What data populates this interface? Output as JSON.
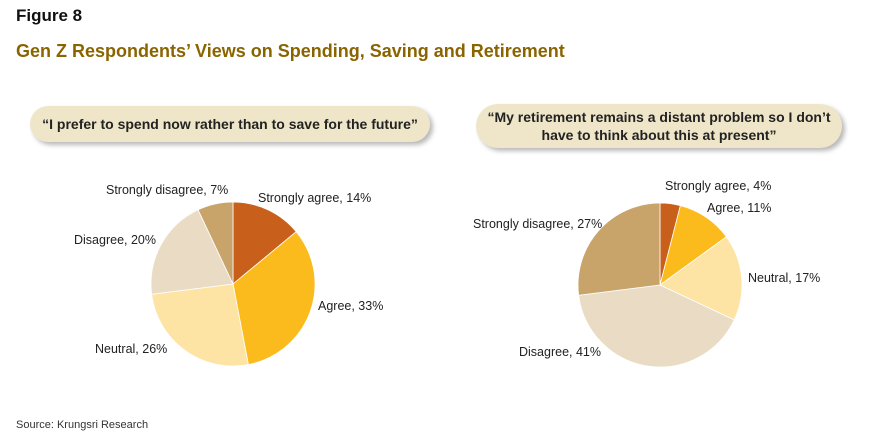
{
  "figure_label": "Figure 8",
  "title": "Gen Z Respondents’ Views on Spending, Saving and Retirement",
  "source": "Source: Krungsri Research",
  "colors": {
    "strongly_agree": "#c8601b",
    "agree": "#fbbb1c",
    "neutral": "#fde4a4",
    "disagree": "#eadcc4",
    "strongly_disagree": "#c9a46a"
  },
  "chart_data": [
    {
      "type": "pie",
      "title": "“I prefer to spend now rather than to save for the future”",
      "categories": [
        "Strongly agree",
        "Agree",
        "Neutral",
        "Disagree",
        "Strongly disagree"
      ],
      "values": [
        14,
        33,
        26,
        20,
        7
      ],
      "labels": [
        "Strongly agree, 14%",
        "Agree, 33%",
        "Neutral, 26%",
        "Disagree, 20%",
        "Strongly disagree, 7%"
      ],
      "unit": "%"
    },
    {
      "type": "pie",
      "title": "“My retirement remains a distant problem so I don’t have to think about this at present”",
      "categories": [
        "Strongly agree",
        "Agree",
        "Neutral",
        "Disagree",
        "Strongly disagree"
      ],
      "values": [
        4,
        11,
        17,
        41,
        27
      ],
      "labels": [
        "Strongly agree, 4%",
        "Agree, 11%",
        "Neutral, 17%",
        "Disagree, 41%",
        "Strongly disagree, 27%"
      ],
      "unit": "%"
    }
  ]
}
